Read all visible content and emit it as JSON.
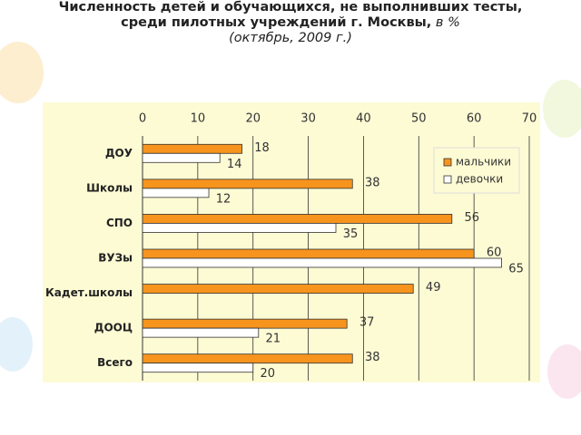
{
  "chart_data": {
    "type": "barh",
    "title": [
      "Численность детей и обучающихся, не выполнивших тесты,",
      "среди пилотных  учреждений г. Москвы,"
    ],
    "title_unit": "в %",
    "subtitle": "(октябрь, 2009 г.)",
    "categories": [
      "ДОУ",
      "Школы",
      "СПО",
      "ВУЗы",
      "Кадет.школы",
      "ДООЦ",
      "Всего"
    ],
    "series": [
      {
        "name": "мальчики",
        "color": "#f7941d",
        "values": [
          18,
          38,
          56,
          60,
          49,
          37,
          38
        ]
      },
      {
        "name": "девочки",
        "color": "#ffffff",
        "values": [
          14,
          12,
          35,
          65,
          null,
          21,
          20
        ]
      }
    ],
    "xlim": [
      0,
      70
    ],
    "xticks": [
      0,
      10,
      20,
      30,
      40,
      50,
      60,
      70
    ],
    "grid": true,
    "legend": "upper right"
  }
}
